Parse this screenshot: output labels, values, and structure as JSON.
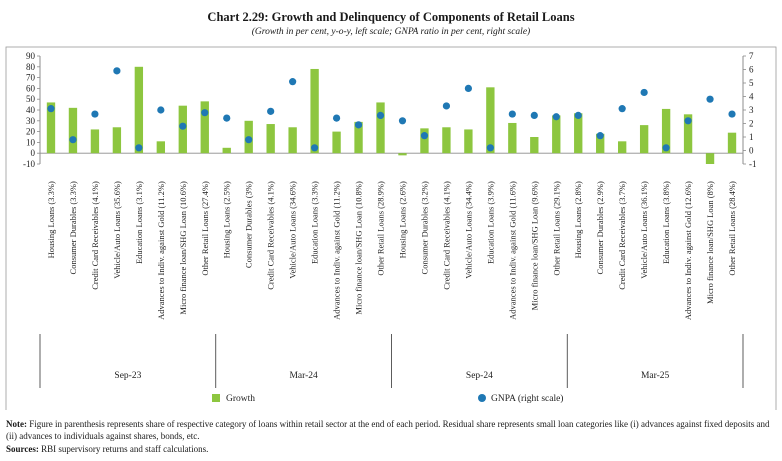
{
  "chart_data": {
    "type": "bar+scatter",
    "title": "Chart 2.29: Growth and Delinquency of Components of Retail Loans",
    "subtitle": "(Growth in per cent, y-o-y, left scale; GNPA ratio in per cent, right scale)",
    "left_axis": {
      "min": -10,
      "max": 90,
      "step": 10,
      "ticks": [
        "-10",
        "0",
        "10",
        "20",
        "30",
        "40",
        "50",
        "60",
        "70",
        "80",
        "90"
      ]
    },
    "right_axis": {
      "min": -1,
      "max": 7,
      "step": 1,
      "ticks": [
        "-1",
        "0",
        "1",
        "2",
        "3",
        "4",
        "5",
        "6",
        "7"
      ]
    },
    "groups": [
      {
        "period": "Sep-23",
        "categories": [
          "Housing Loans (3.3%)",
          "Consumer Durables (3.3%)",
          "Credit Card Receivables (4.1%)",
          "Vehicle/Auto Loans (35.6%)",
          "Education Loans (3.1%)",
          "Advances to Indiv. against Gold (11.2%)",
          "Micro finance loan/SHG Loan (10.6%)",
          "Other Retail Loans (27.4%)"
        ],
        "growth": [
          47,
          42,
          22,
          24,
          80,
          11,
          44,
          48
        ],
        "gnpa": [
          3.1,
          0.8,
          2.7,
          5.9,
          0.2,
          3.0,
          1.8,
          2.8
        ]
      },
      {
        "period": "Mar-24",
        "categories": [
          "Housing Loans (2.5%)",
          "Consumer Durables (3%)",
          "Credit Card Receivables (4.1%)",
          "Vehicle/Auto Loans (34.6%)",
          "Education Loans (3.3%)",
          "Advances to Indiv. against Gold (11.2%)",
          "Micro finance loan/SHG Loan (10.8%)",
          "Other Retail Loans (28.9%)"
        ],
        "growth": [
          5,
          30,
          27,
          24,
          78,
          20,
          29,
          47
        ],
        "gnpa": [
          2.4,
          0.8,
          2.9,
          5.1,
          0.2,
          2.4,
          1.9,
          2.6
        ]
      },
      {
        "period": "Sep-24",
        "categories": [
          "Housing Loans (2.6%)",
          "Consumer Durables (3.2%)",
          "Credit Card Receivables (4.1%)",
          "Vehicle/Auto Loans (34.4%)",
          "Education Loans (3.9%)",
          "Advances to Indiv. against Gold (11.6%)",
          "Micro finance loan/SHG Loan (9.6%)",
          "Other Retail Loans (29.1%)"
        ],
        "growth": [
          -2,
          23,
          24,
          22,
          61,
          28,
          15,
          35
        ],
        "gnpa": [
          2.2,
          1.1,
          3.3,
          4.6,
          0.2,
          2.7,
          2.6,
          2.5
        ]
      },
      {
        "period": "Mar-25",
        "categories": [
          "Housing Loans (2.8%)",
          "Consumer Durables (2.9%)",
          "Credit Card Receivables (3.7%)",
          "Vehicle/Auto Loans (36.1%)",
          "Education Loans (3.8%)",
          "Advances to Indiv. against Gold (12.6%)",
          "Micro finance loan/SHG Loan (8%)",
          "Other Retail Loans (28.4%)"
        ],
        "growth": [
          37,
          18,
          11,
          26,
          41,
          36,
          -10,
          19
        ],
        "gnpa": [
          2.6,
          1.1,
          3.1,
          4.3,
          0.2,
          2.2,
          3.8,
          2.7
        ]
      }
    ],
    "legend": [
      {
        "label": "Growth",
        "type": "bar"
      },
      {
        "label": "GNPA (right scale)",
        "type": "dot"
      }
    ]
  },
  "colors": {
    "growth": "#8dc63f",
    "gnpa": "#1f78b4",
    "axis": "#8c8c8c",
    "grid": "#bfbfbf"
  },
  "note": {
    "label": "Note:",
    "text": "Figure in parenthesis represents share of respective category of loans within retail sector at the end of each period. Residual share represents small loan categories like (i) advances against fixed deposits and (ii) advances to individuals against shares, bonds, etc."
  },
  "sources": {
    "label": "Sources:",
    "text": "RBI supervisory returns and staff calculations."
  }
}
